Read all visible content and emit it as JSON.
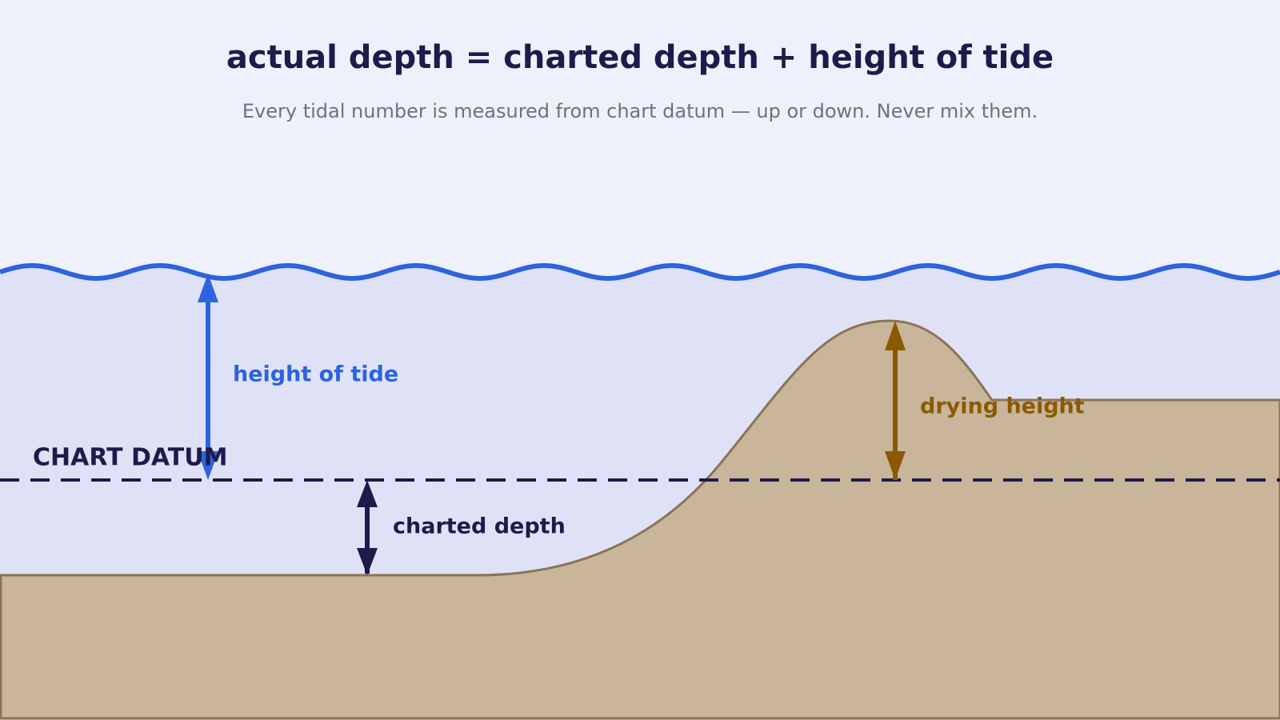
{
  "header": {
    "title": "actual depth = charted depth + height of tide",
    "subtitle": "Every tidal number is measured from chart datum — up or down. Never mix them."
  },
  "labels": {
    "height_of_tide": "height of tide",
    "chart_datum": "CHART DATUM",
    "charted_depth": "charted depth",
    "drying_height": "drying height"
  }
}
